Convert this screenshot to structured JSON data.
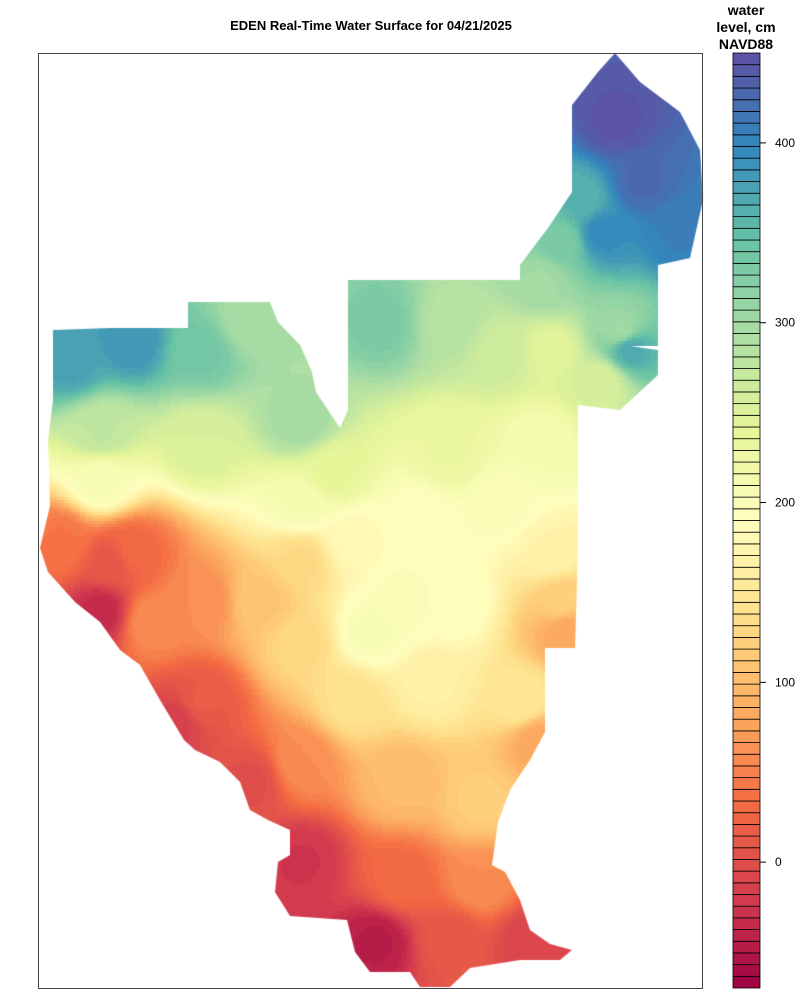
{
  "chart_data": {
    "type": "heatmap",
    "title": "EDEN Real-Time Water Surface for 04/21/2025",
    "colorbar": {
      "title_lines": [
        "water",
        "level, cm",
        "NAVD88"
      ],
      "ticks": [
        0,
        100,
        200,
        300,
        400
      ],
      "range": [
        -70,
        450
      ],
      "bins": 80,
      "palette": [
        "#9E0142",
        "#D53E4F",
        "#F46D43",
        "#FDAE61",
        "#FEE08B",
        "#FFFFBF",
        "#E6F598",
        "#ABDDA4",
        "#66C2A5",
        "#3288BD",
        "#5E4FA2"
      ]
    },
    "description_colors": {
      "frame": "#444444",
      "background": "#ffffff"
    }
  }
}
